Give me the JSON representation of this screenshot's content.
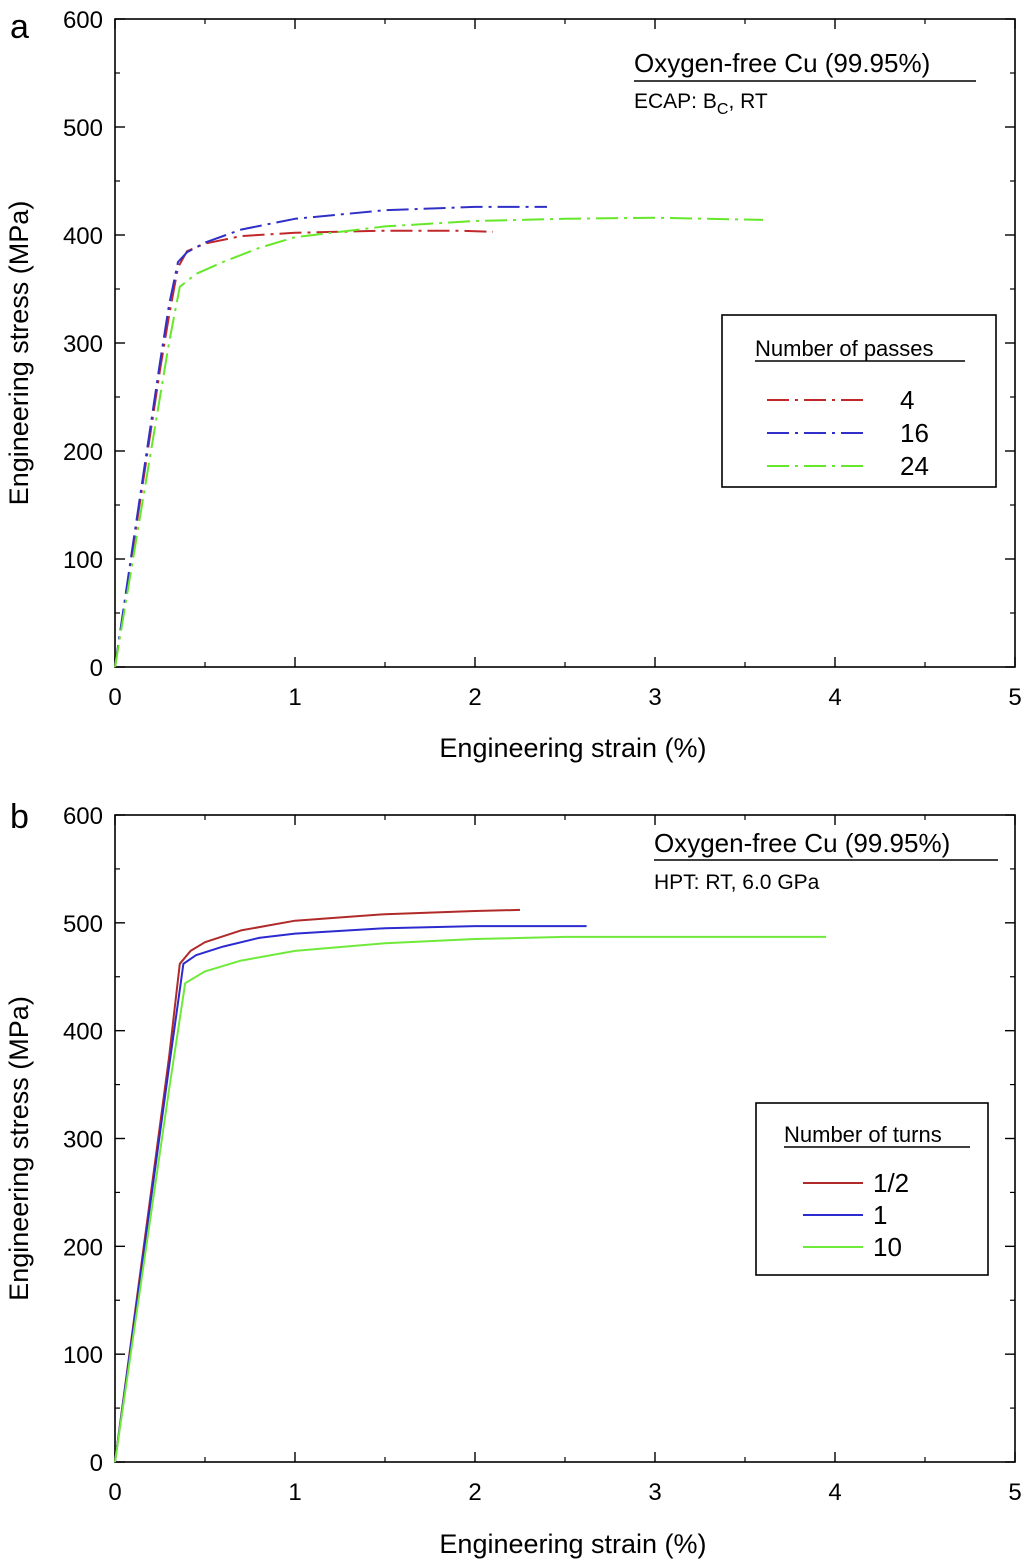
{
  "chart_data": [
    {
      "type": "line",
      "panel_label": "a",
      "xlabel": "Engineering strain (%)",
      "ylabel": "Engineering stress (MPa)",
      "xlim": [
        0,
        5
      ],
      "ylim": [
        0,
        600
      ],
      "xticks": [
        "0",
        "1",
        "2",
        "3",
        "4",
        "5"
      ],
      "yticks": [
        "0",
        "100",
        "200",
        "300",
        "400",
        "500",
        "600"
      ],
      "annotation": {
        "title": "Oxygen-free Cu (99.95%)",
        "subtitle_prefix": "ECAP: B",
        "subtitle_sub": "C",
        "subtitle_suffix": ", RT"
      },
      "legend": {
        "title": "Number of passes",
        "placement": "right"
      },
      "series": [
        {
          "name": "4",
          "color": "#c0282b",
          "dash": "dashdot",
          "x": [
            0,
            0.05,
            0.1,
            0.15,
            0.2,
            0.25,
            0.3,
            0.35,
            0.4,
            0.5,
            0.7,
            1.0,
            1.5,
            1.9,
            2.1
          ],
          "y": [
            0,
            55,
            110,
            165,
            220,
            275,
            325,
            370,
            385,
            392,
            399,
            402,
            404,
            404,
            403
          ]
        },
        {
          "name": "16",
          "color": "#3030c8",
          "dash": "dashdot",
          "x": [
            0,
            0.05,
            0.1,
            0.15,
            0.2,
            0.25,
            0.3,
            0.35,
            0.4,
            0.5,
            0.7,
            1.0,
            1.5,
            2.0,
            2.4
          ],
          "y": [
            0,
            57,
            114,
            170,
            226,
            282,
            335,
            375,
            384,
            393,
            405,
            415,
            423,
            426,
            426
          ]
        },
        {
          "name": "24",
          "color": "#66e82a",
          "dash": "dashdot",
          "x": [
            0,
            0.05,
            0.1,
            0.15,
            0.2,
            0.25,
            0.3,
            0.36,
            0.45,
            0.6,
            0.8,
            1.0,
            1.5,
            2.0,
            2.5,
            3.0,
            3.6
          ],
          "y": [
            0,
            50,
            100,
            150,
            200,
            250,
            300,
            352,
            364,
            375,
            388,
            398,
            408,
            413,
            415,
            416,
            414
          ]
        }
      ]
    },
    {
      "type": "line",
      "panel_label": "b",
      "xlabel": "Engineering strain (%)",
      "ylabel": "Engineering stress (MPa)",
      "xlim": [
        0,
        5
      ],
      "ylim": [
        0,
        600
      ],
      "xticks": [
        "0",
        "1",
        "2",
        "3",
        "4",
        "5"
      ],
      "yticks": [
        "0",
        "100",
        "200",
        "300",
        "400",
        "500",
        "600"
      ],
      "annotation": {
        "title": "Oxygen-free Cu (99.95%)",
        "subtitle_prefix": "HPT: RT, 6.0 GPa",
        "subtitle_sub": "",
        "subtitle_suffix": ""
      },
      "legend": {
        "title": "Number of turns",
        "placement": "right"
      },
      "series": [
        {
          "name": "1/2",
          "color": "#b02a2a",
          "dash": "solid",
          "x": [
            0,
            0.1,
            0.2,
            0.3,
            0.36,
            0.42,
            0.5,
            0.7,
            1.0,
            1.5,
            2.0,
            2.25
          ],
          "y": [
            0,
            125,
            250,
            375,
            462,
            474,
            482,
            493,
            502,
            508,
            511,
            512
          ]
        },
        {
          "name": "1",
          "color": "#2b2bd0",
          "dash": "solid",
          "x": [
            0,
            0.1,
            0.2,
            0.3,
            0.38,
            0.45,
            0.6,
            0.8,
            1.0,
            1.5,
            2.0,
            2.62
          ],
          "y": [
            0,
            122,
            244,
            366,
            462,
            470,
            478,
            486,
            490,
            495,
            497,
            497
          ]
        },
        {
          "name": "10",
          "color": "#70ea3a",
          "dash": "solid",
          "x": [
            0,
            0.1,
            0.2,
            0.3,
            0.39,
            0.5,
            0.7,
            1.0,
            1.5,
            2.0,
            2.5,
            3.0,
            3.5,
            3.95
          ],
          "y": [
            0,
            115,
            230,
            345,
            444,
            455,
            465,
            474,
            481,
            485,
            487,
            487,
            487,
            487
          ]
        }
      ]
    }
  ]
}
